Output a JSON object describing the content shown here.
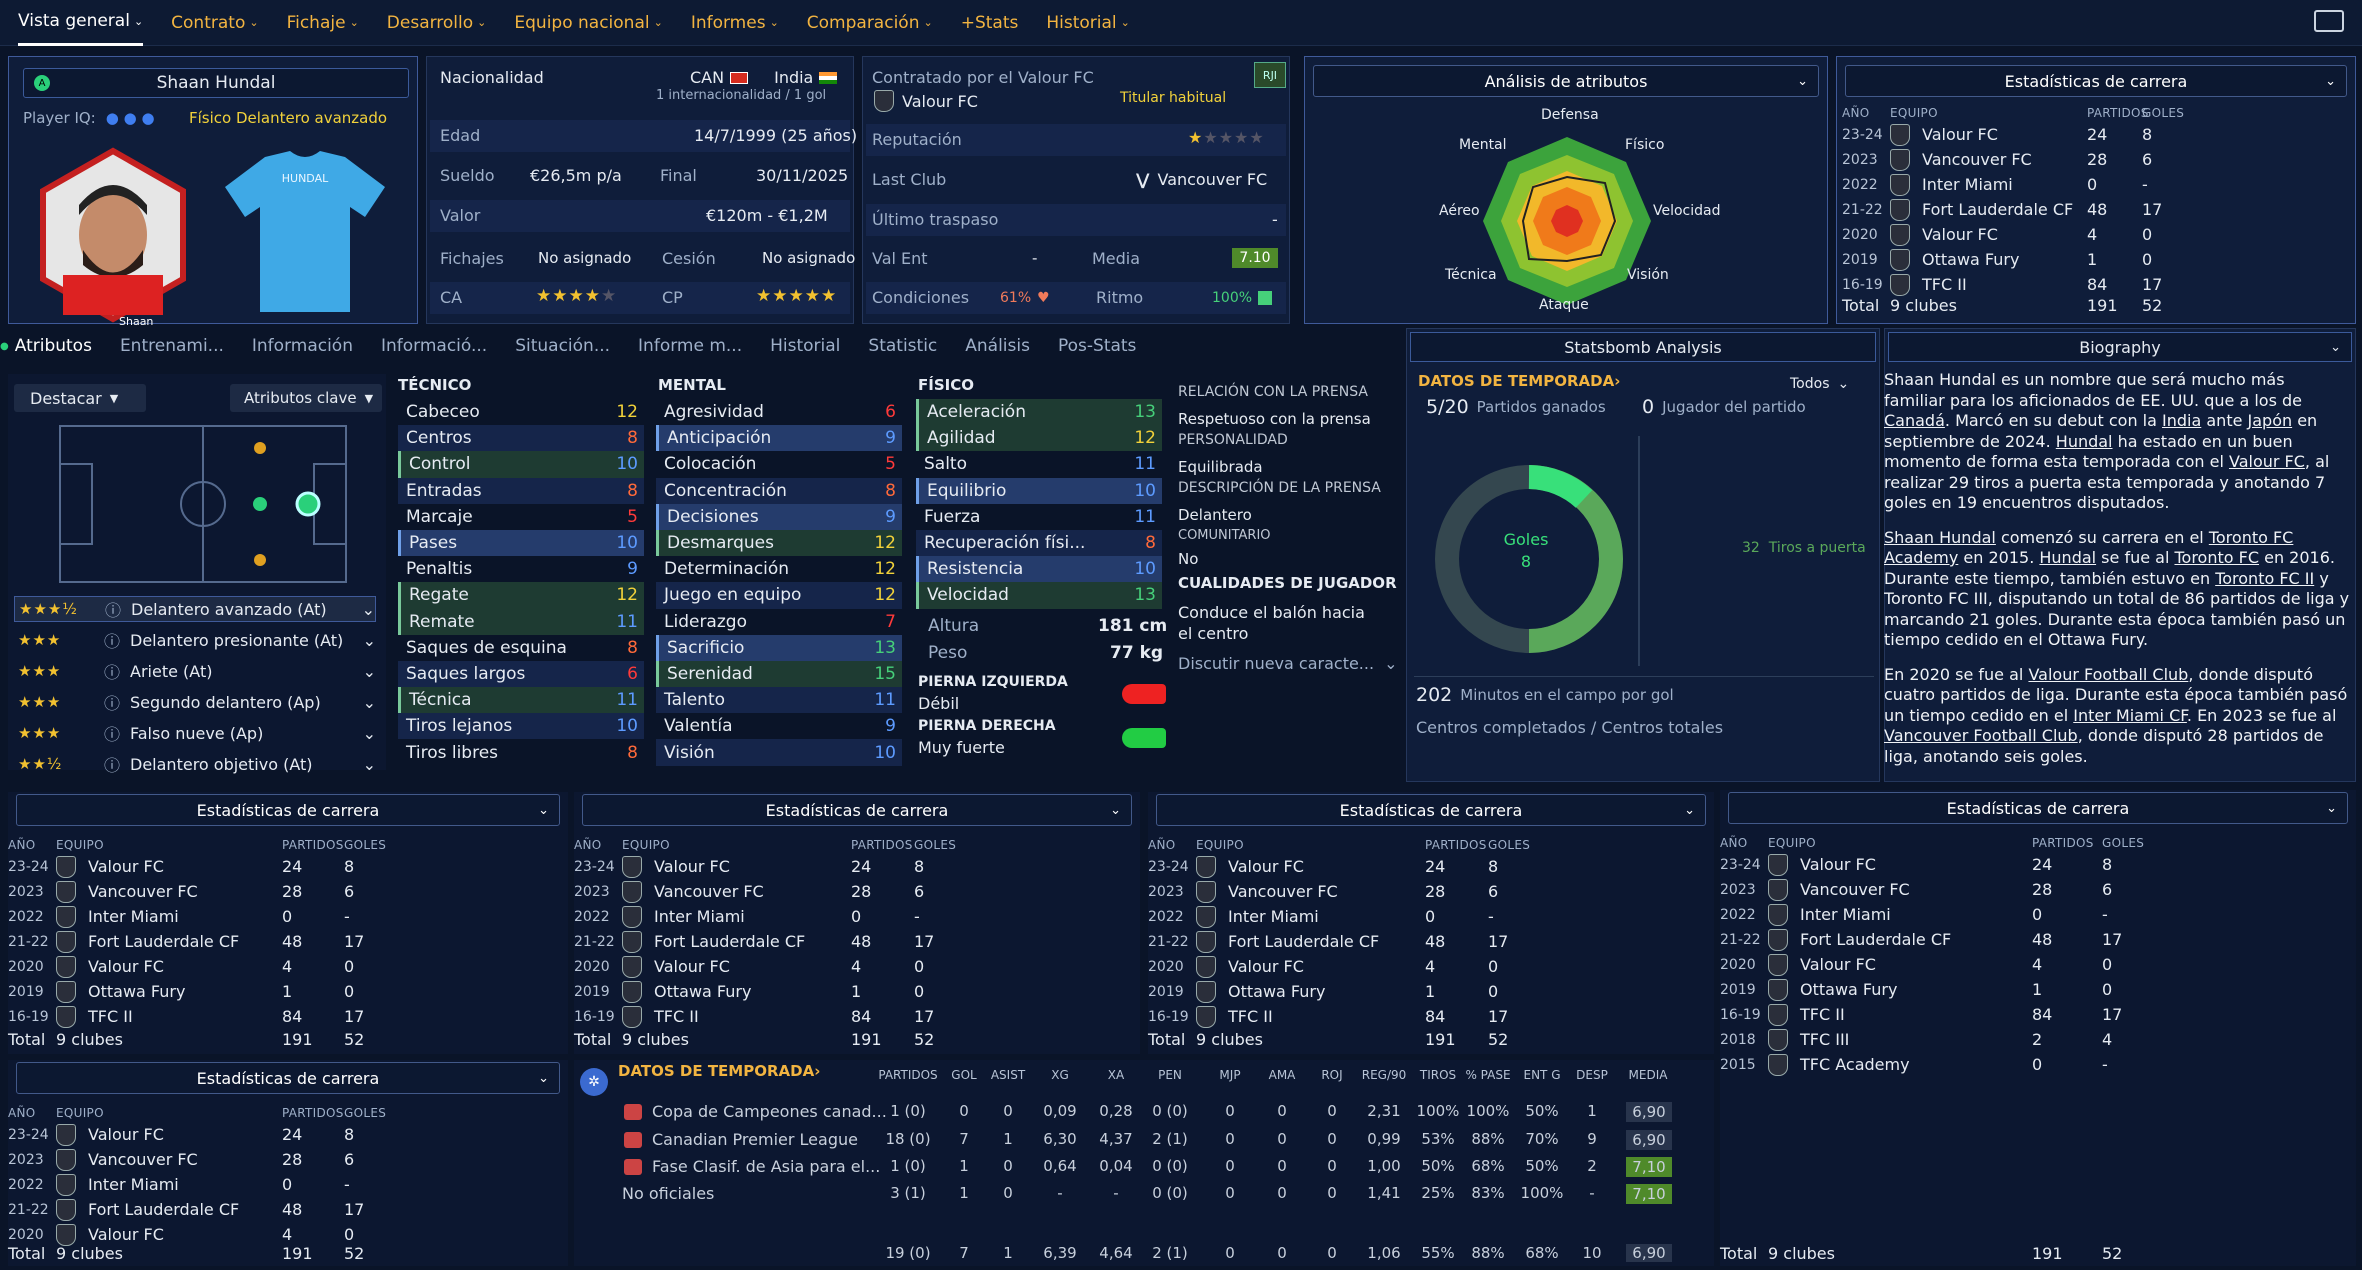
{
  "nav": {
    "tabs": [
      "Vista general",
      "Contrato",
      "Fichaje",
      "Desarrollo",
      "Equipo nacional",
      "Informes",
      "Comparación",
      "+Stats",
      "Historial"
    ]
  },
  "player": {
    "name": "Shaan Hundal",
    "iq_label": "Player IQ:",
    "roles": "Físico",
    "role_main": "Delantero avanzado",
    "shirt_text": "HUNDAL",
    "photo_caption1": "Shaan",
    "photo_caption2": "HUNDAL"
  },
  "info": {
    "nat_label": "Nacionalidad",
    "nat1": "CAN",
    "nat2": "India",
    "caps": "1 internacionalidad / 1 gol",
    "age_label": "Edad",
    "age": "14/7/1999 (25 años)",
    "salary_label": "Sueldo",
    "salary": "€26,5m p/a",
    "end_label": "Final",
    "end": "30/11/2025",
    "value_label": "Valor",
    "value": "€120m - €1,2M",
    "transfers_label": "Fichajes",
    "transfers": "No asignado",
    "loan_label": "Cesión",
    "loan": "No asignado",
    "ca_label": "CA",
    "cp_label": "CP",
    "contract_label": "Contratado por el Valour FC",
    "club": "Valour FC",
    "role": "Titular habitual",
    "badge": "RJI",
    "rep_label": "Reputación",
    "last_club_label": "Last Club",
    "last_club": "Vancouver FC",
    "last_transfer_label": "Último traspaso",
    "last_transfer": "-",
    "valent_label": "Val Ent",
    "valent": "-",
    "media_label": "Media",
    "media": "7.10",
    "cond_label": "Condiciones",
    "cond": "61%",
    "ritmo_label": "Ritmo",
    "ritmo": "100%"
  },
  "radar": {
    "title": "Análisis de atributos",
    "labels": [
      "Defensa",
      "Físico",
      "Velocidad",
      "Visión",
      "Ataque",
      "Técnica",
      "Aéreo",
      "Mental"
    ]
  },
  "career": {
    "title": "Estadísticas de carrera",
    "h_year": "AÑO",
    "h_team": "EQUIPO",
    "h_apps": "PARTIDOS",
    "h_goals": "GOLES",
    "rows": [
      [
        "23-24",
        "Valour FC",
        "24",
        "8"
      ],
      [
        "2023",
        "Vancouver FC",
        "28",
        "6"
      ],
      [
        "2022",
        "Inter Miami",
        "0",
        "-"
      ],
      [
        "21-22",
        "Fort Lauderdale CF",
        "48",
        "17"
      ],
      [
        "2020",
        "Valour FC",
        "4",
        "0"
      ],
      [
        "2019",
        "Ottawa Fury",
        "1",
        "0"
      ],
      [
        "16-19",
        "TFC II",
        "84",
        "17"
      ]
    ],
    "extra": [
      [
        "2018",
        "TFC III",
        "2",
        "4"
      ],
      [
        "2015",
        "TFC Academy",
        "0",
        "-"
      ]
    ],
    "total": [
      "Total",
      "9 clubes",
      "191",
      "52"
    ]
  },
  "subtabs": [
    "Atributos",
    "Entrenami...",
    "Información",
    "Informació...",
    "Situación...",
    "Informe m...",
    "Historial",
    "Statistic",
    "Análisis",
    "Pos-Stats"
  ],
  "pitch": {
    "dd1": "Destacar",
    "dd2": "Atributos clave"
  },
  "roles": [
    [
      "Delantero avanzado (At)",
      "3.5"
    ],
    [
      "Delantero presionante (At)",
      "3"
    ],
    [
      "Ariete (At)",
      "3"
    ],
    [
      "Segundo delantero (Ap)",
      "3"
    ],
    [
      "Falso nueve (Ap)",
      "3"
    ],
    [
      "Delantero objetivo (At)",
      "2.5"
    ]
  ],
  "attrs": {
    "tec_title": "TÉCNICO",
    "men_title": "MENTAL",
    "fis_title": "FÍSICO",
    "tec": [
      [
        "Cabeceo",
        "12"
      ],
      [
        "Centros",
        "8"
      ],
      [
        "Control",
        "10"
      ],
      [
        "Entradas",
        "8"
      ],
      [
        "Marcaje",
        "5"
      ],
      [
        "Pases",
        "10"
      ],
      [
        "Penaltis",
        "9"
      ],
      [
        "Regate",
        "12"
      ],
      [
        "Remate",
        "11"
      ],
      [
        "Liderazgo",
        ""
      ],
      [
        "Saques de esquina",
        "8"
      ],
      [
        "Saques largos",
        "6"
      ],
      [
        "Técnica",
        "11"
      ],
      [
        "Tiros lejanos",
        "10"
      ],
      [
        "Tiros libres",
        "8"
      ]
    ],
    "men": [
      [
        "Agresividad",
        "6"
      ],
      [
        "Anticipación",
        "9"
      ],
      [
        "Colocación",
        "5"
      ],
      [
        "Concentración",
        "8"
      ],
      [
        "Decisiones",
        "9"
      ],
      [
        "Desmarques",
        "12"
      ],
      [
        "Determinación",
        "12"
      ],
      [
        "Juego en equipo",
        "12"
      ],
      [
        "Liderazgo",
        "7"
      ],
      [
        "Sacrificio",
        "13"
      ],
      [
        "Serenidad",
        "15"
      ],
      [
        "Talento",
        "11"
      ],
      [
        "Valentía",
        "9"
      ],
      [
        "Visión",
        "10"
      ]
    ],
    "fis": [
      [
        "Aceleración",
        "13"
      ],
      [
        "Agilidad",
        "12"
      ],
      [
        "Equilibrio",
        "10"
      ],
      [
        "Fuerza",
        "11"
      ],
      [
        "Recuperación físi...",
        "8"
      ],
      [
        "Resistencia",
        "10"
      ],
      [
        "Velocidad",
        "13"
      ]
    ],
    "fis_extra": [
      [
        "Salto",
        "11"
      ]
    ],
    "height_label": "Altura",
    "height": "181 cm",
    "weight_label": "Peso",
    "weight": "77 kg",
    "lf_label": "PIERNA IZQUIERDA",
    "lf": "Débil",
    "rf_label": "PIERNA DERECHA",
    "rf": "Muy fuerte"
  },
  "press": {
    "t1": "RELACIÓN CON LA PRENSA",
    "v1": "Respetuoso con la prensa",
    "t2": "PERSONALIDAD",
    "v2": "Equilibrada",
    "t3": "DESCRIPCIÓN DE LA PRENSA",
    "v3": "Delantero",
    "t4": "COMUNITARIO",
    "v4": "No",
    "t5": "CUALIDADES DE JUGADOR",
    "v5": "Conduce el balón hacia el centro",
    "v6": "Discutir nueva caracte..."
  },
  "statsbomb": {
    "title": "Statsbomb Analysis",
    "season": "DATOS DE TEMPORADA",
    "filter": "Todos",
    "won": "5/20",
    "won_label": "Partidos ganados",
    "motm": "0",
    "motm_label": "Jugador del partido",
    "goals_label": "Goles",
    "goals": "8",
    "shots": "32",
    "shots_label": "Tiros a puerta",
    "mins": "202",
    "mins_label": "Minutos en el campo por gol",
    "cross": "Centros completados / Centros totales"
  },
  "bio": {
    "title": "Biography"
  },
  "season": {
    "title": "DATOS DE TEMPORADA",
    "headers": [
      "PARTIDOS",
      "GOL",
      "ASIST",
      "XG",
      "XA",
      "PEN",
      "MJP",
      "AMA",
      "ROJ",
      "REG/90",
      "TIROS",
      "% PASE",
      "ENT G",
      "DESP",
      "MEDIA"
    ],
    "rows": [
      [
        "Copa de Campeones canad...",
        "1 (0)",
        "0",
        "0",
        "0,09",
        "0,28",
        "0 (0)",
        "0",
        "0",
        "0",
        "2,31",
        "100%",
        "100%",
        "50%",
        "1",
        "6,90"
      ],
      [
        "Canadian Premier League",
        "18 (0)",
        "7",
        "1",
        "6,30",
        "4,37",
        "2 (1)",
        "0",
        "0",
        "0",
        "0,99",
        "53%",
        "88%",
        "70%",
        "9",
        "6,90"
      ],
      [
        "Fase Clasif. de Asia para el...",
        "1 (0)",
        "1",
        "0",
        "0,64",
        "0,04",
        "0 (0)",
        "0",
        "0",
        "0",
        "1,00",
        "50%",
        "68%",
        "50%",
        "2",
        "7,10"
      ],
      [
        "No oficiales",
        "3 (1)",
        "1",
        "0",
        "-",
        "-",
        "0 (0)",
        "0",
        "0",
        "0",
        "1,41",
        "25%",
        "83%",
        "100%",
        "-",
        "7,10"
      ]
    ],
    "total": [
      "",
      "19 (0)",
      "7",
      "1",
      "6,39",
      "4,64",
      "2 (1)",
      "0",
      "0",
      "0",
      "1,06",
      "55%",
      "88%",
      "68%",
      "10",
      "6,90"
    ]
  }
}
